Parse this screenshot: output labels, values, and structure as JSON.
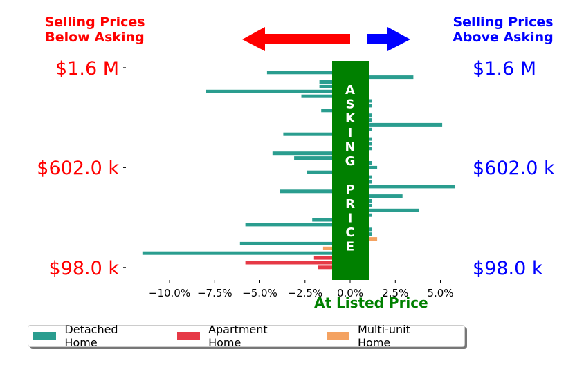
{
  "header": {
    "below_label": "Selling Prices\nBelow Asking",
    "above_label": "Selling Prices\nAbove Asking"
  },
  "colors": {
    "below": "#ff0000",
    "above": "#0000ff",
    "asking_band": "#008000",
    "detached": "#2a9d8f",
    "apartment": "#e63946",
    "multiunit": "#f4a261"
  },
  "chart_data": {
    "type": "bar",
    "orientation": "horizontal",
    "band_text": "ASKING PRICE",
    "xlabel": "At Listed Price",
    "xlim": [
      -12.0,
      7.0
    ],
    "xticks": [
      -10.0,
      -7.5,
      -5.0,
      -2.5,
      0.0,
      2.5,
      5.0
    ],
    "xtick_labels": [
      "−10.0%",
      "−7.5%",
      "−5.0%",
      "−2.5%",
      "0.0%",
      "2.5%",
      "5.0%"
    ],
    "y_axis_labels": [
      {
        "text": "$1.6 M",
        "row": 1
      },
      {
        "text": "$602.0 k",
        "row": 22
      },
      {
        "text": "$98.0 k",
        "row": 43
      }
    ],
    "legend": [
      {
        "name": "Detached Home",
        "key": "detached"
      },
      {
        "name": "Apartment Home",
        "key": "apartment"
      },
      {
        "name": "Multi-unit Home",
        "key": "multiunit"
      }
    ],
    "series": [
      {
        "name": "Detached Home",
        "key": "detached",
        "bars": [
          {
            "row": 2,
            "value": -4.6
          },
          {
            "row": 3,
            "value": 3.5
          },
          {
            "row": 4,
            "value": -1.7
          },
          {
            "row": 5,
            "value": -1.7
          },
          {
            "row": 6,
            "value": -8.0
          },
          {
            "row": 7,
            "value": -2.7
          },
          {
            "row": 8,
            "value": 1.2
          },
          {
            "row": 9,
            "value": 1.2
          },
          {
            "row": 10,
            "value": -1.6
          },
          {
            "row": 11,
            "value": 1.2
          },
          {
            "row": 12,
            "value": 1.2
          },
          {
            "row": 13,
            "value": 5.1
          },
          {
            "row": 14,
            "value": 1.2
          },
          {
            "row": 15,
            "value": -3.7
          },
          {
            "row": 16,
            "value": 1.2
          },
          {
            "row": 17,
            "value": 1.2
          },
          {
            "row": 18,
            "value": 1.2
          },
          {
            "row": 19,
            "value": -4.3
          },
          {
            "row": 20,
            "value": -3.1
          },
          {
            "row": 21,
            "value": 1.2
          },
          {
            "row": 22,
            "value": 1.5
          },
          {
            "row": 23,
            "value": -2.4
          },
          {
            "row": 24,
            "value": 1.2
          },
          {
            "row": 25,
            "value": 1.2
          },
          {
            "row": 26,
            "value": 5.8
          },
          {
            "row": 27,
            "value": -3.9
          },
          {
            "row": 28,
            "value": 2.9
          },
          {
            "row": 29,
            "value": 1.2
          },
          {
            "row": 30,
            "value": 1.2
          },
          {
            "row": 31,
            "value": 3.8
          },
          {
            "row": 32,
            "value": 1.2
          },
          {
            "row": 33,
            "value": -2.1
          },
          {
            "row": 34,
            "value": -5.8
          },
          {
            "row": 35,
            "value": 1.2
          },
          {
            "row": 36,
            "value": 1.2
          },
          {
            "row": 38,
            "value": -6.1
          },
          {
            "row": 40,
            "value": -11.5
          }
        ]
      },
      {
        "name": "Apartment Home",
        "key": "apartment",
        "bars": [
          {
            "row": 41,
            "value": -2.0
          },
          {
            "row": 42,
            "value": -5.8
          },
          {
            "row": 43,
            "value": -1.8
          }
        ]
      },
      {
        "name": "Multi-unit Home",
        "key": "multiunit",
        "bars": [
          {
            "row": 37,
            "value": 1.5
          },
          {
            "row": 39,
            "value": -1.5
          }
        ]
      }
    ]
  }
}
